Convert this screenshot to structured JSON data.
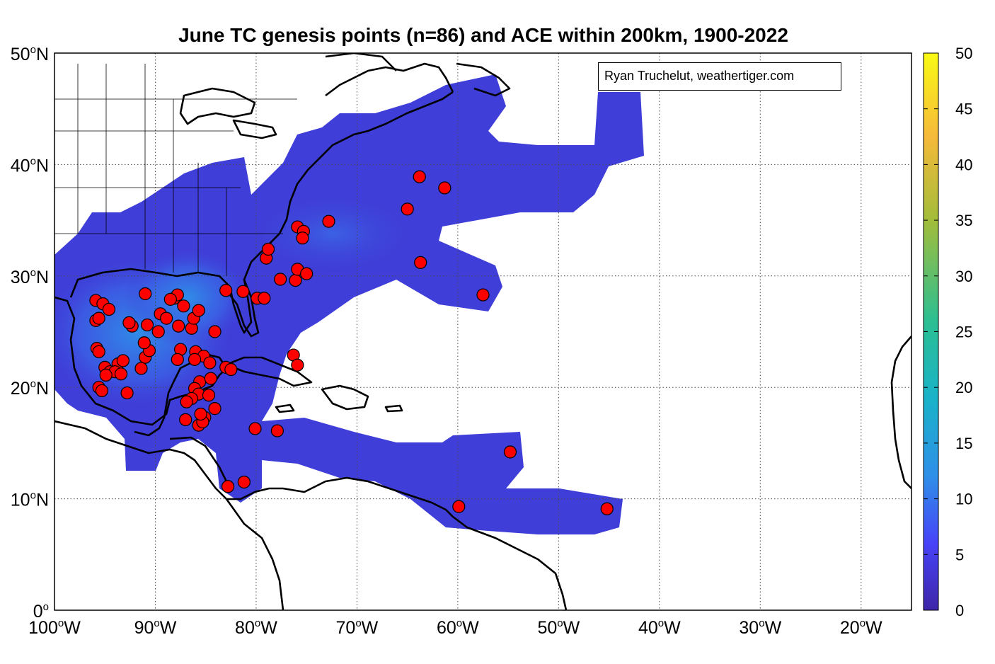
{
  "title": "June TC genesis points (n=86) and ACE within 200km, 1900-2022",
  "credit": "Ryan Truchelut, weathertiger.com",
  "map": {
    "lon_range": [
      -100,
      -15
    ],
    "lat_range": [
      0,
      50
    ],
    "x_ticks": [
      {
        "lon": -100,
        "text": "100",
        "unit": "o",
        "hem": "W"
      },
      {
        "lon": -90,
        "text": "90",
        "unit": "o",
        "hem": "W"
      },
      {
        "lon": -80,
        "text": "80",
        "unit": "o",
        "hem": "W"
      },
      {
        "lon": -70,
        "text": "70",
        "unit": "o",
        "hem": "W"
      },
      {
        "lon": -60,
        "text": "60",
        "unit": "o",
        "hem": "W"
      },
      {
        "lon": -50,
        "text": "50",
        "unit": "o",
        "hem": "W"
      },
      {
        "lon": -40,
        "text": "40",
        "unit": "o",
        "hem": "W"
      },
      {
        "lon": -30,
        "text": "30",
        "unit": "o",
        "hem": "W"
      },
      {
        "lon": -20,
        "text": "20",
        "unit": "o",
        "hem": "W"
      }
    ],
    "y_ticks": [
      {
        "lat": 0,
        "text": "0",
        "unit": "o",
        "hem": ""
      },
      {
        "lat": 10,
        "text": "10",
        "unit": "o",
        "hem": "N"
      },
      {
        "lat": 20,
        "text": "20",
        "unit": "o",
        "hem": "N"
      },
      {
        "lat": 30,
        "text": "30",
        "unit": "o",
        "hem": "N"
      },
      {
        "lat": 40,
        "text": "40",
        "unit": "o",
        "hem": "N"
      },
      {
        "lat": 50,
        "text": "50",
        "unit": "o",
        "hem": "N"
      }
    ],
    "colors": {
      "ace_fill": "#3f3ed8",
      "ace_core": "#2f8fe8",
      "genesis_point": "#ff0000",
      "land_outline": "#000000"
    }
  },
  "colorbar": {
    "ticks": [
      "0",
      "5",
      "10",
      "15",
      "20",
      "25",
      "30",
      "35",
      "40",
      "45",
      "50"
    ],
    "range": [
      0,
      50
    ],
    "colors": [
      "#3e26a8",
      "#4743f8",
      "#2f8fe8",
      "#1ab2c9",
      "#2cbf92",
      "#a2bd3a",
      "#f6b93a",
      "#f9fa14"
    ]
  },
  "genesis_points": [
    [
      -95.9,
      27.8
    ],
    [
      -95.2,
      27.5
    ],
    [
      -94.6,
      27.0
    ],
    [
      -95.9,
      26.0
    ],
    [
      -95.6,
      26.2
    ],
    [
      -95.8,
      23.5
    ],
    [
      -95.6,
      23.2
    ],
    [
      -95.0,
      21.8
    ],
    [
      -94.5,
      21.4
    ],
    [
      -93.7,
      22.1
    ],
    [
      -94.0,
      21.4
    ],
    [
      -93.4,
      21.2
    ],
    [
      -94.9,
      21.1
    ],
    [
      -95.6,
      20.0
    ],
    [
      -95.3,
      19.7
    ],
    [
      -92.8,
      19.5
    ],
    [
      -91.4,
      21.7
    ],
    [
      -91.0,
      22.7
    ],
    [
      -90.6,
      23.3
    ],
    [
      -91.1,
      24.0
    ],
    [
      -92.3,
      25.5
    ],
    [
      -90.8,
      25.6
    ],
    [
      -89.7,
      25.0
    ],
    [
      -89.5,
      26.6
    ],
    [
      -91.0,
      28.4
    ],
    [
      -88.1,
      28.0
    ],
    [
      -87.8,
      28.3
    ],
    [
      -87.7,
      25.5
    ],
    [
      -86.4,
      25.3
    ],
    [
      -86.2,
      26.2
    ],
    [
      -85.7,
      26.9
    ],
    [
      -84.1,
      25.0
    ],
    [
      -87.5,
      23.4
    ],
    [
      -86.0,
      23.2
    ],
    [
      -85.2,
      22.8
    ],
    [
      -84.6,
      22.2
    ],
    [
      -83.0,
      21.8
    ],
    [
      -87.8,
      22.5
    ],
    [
      -86.1,
      22.5
    ],
    [
      -85.6,
      20.5
    ],
    [
      -86.1,
      19.9
    ],
    [
      -85.7,
      19.4
    ],
    [
      -86.4,
      19.0
    ],
    [
      -86.9,
      18.7
    ],
    [
      -84.5,
      20.8
    ],
    [
      -84.7,
      19.3
    ],
    [
      -84.1,
      18.1
    ],
    [
      -85.1,
      17.3
    ],
    [
      -85.7,
      16.6
    ],
    [
      -85.3,
      16.9
    ],
    [
      -85.5,
      17.6
    ],
    [
      -87.0,
      17.1
    ],
    [
      -82.5,
      21.6
    ],
    [
      -83.0,
      28.7
    ],
    [
      -81.3,
      28.6
    ],
    [
      -79.9,
      28.0
    ],
    [
      -79.2,
      28.0
    ],
    [
      -79.0,
      31.6
    ],
    [
      -78.8,
      32.4
    ],
    [
      -77.6,
      29.7
    ],
    [
      -76.1,
      29.6
    ],
    [
      -75.9,
      30.6
    ],
    [
      -75.0,
      30.2
    ],
    [
      -76.3,
      22.9
    ],
    [
      -75.9,
      22.0
    ],
    [
      -75.9,
      34.4
    ],
    [
      -75.3,
      34.0
    ],
    [
      -75.4,
      33.4
    ],
    [
      -72.8,
      34.9
    ],
    [
      -65.0,
      36.0
    ],
    [
      -63.8,
      38.9
    ],
    [
      -61.3,
      37.9
    ],
    [
      -63.7,
      31.2
    ],
    [
      -57.5,
      28.3
    ],
    [
      -80.1,
      16.3
    ],
    [
      -77.9,
      16.1
    ],
    [
      -81.2,
      11.5
    ],
    [
      -82.8,
      11.1
    ],
    [
      -59.9,
      9.3
    ],
    [
      -54.8,
      14.2
    ],
    [
      -45.2,
      9.1
    ],
    [
      -88.5,
      27.9
    ],
    [
      -88.9,
      26.2
    ],
    [
      -87.2,
      27.3
    ],
    [
      -93.2,
      22.4
    ],
    [
      -92.6,
      25.8
    ]
  ]
}
